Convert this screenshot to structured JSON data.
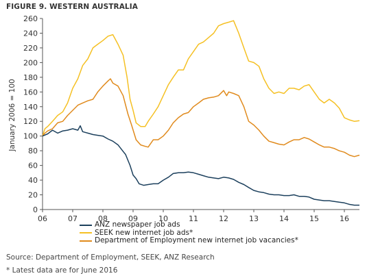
{
  "figure_title": "FIGURE 9. WESTERN AUSTRALIA",
  "source_note": "Source: Department of Employment, SEEK, ANZ Research",
  "footnote": "* Latest data are for June 2016",
  "chart_data": {
    "type": "line",
    "title": "",
    "xlabel": "",
    "ylabel": "January 2006 = 100",
    "xlim": [
      2006,
      2016.5
    ],
    "ylim": [
      0,
      260
    ],
    "yticks": [
      0,
      20,
      40,
      60,
      80,
      100,
      120,
      140,
      160,
      180,
      200,
      220,
      240,
      260
    ],
    "xtick_labels": [
      "06",
      "07",
      "08",
      "09",
      "10",
      "11",
      "12",
      "13",
      "14",
      "15",
      "16"
    ],
    "grid": false,
    "legend_position": "bottom",
    "series": [
      {
        "name": "ANZ newspaper job ads",
        "color": "#1b3f5c",
        "points": [
          [
            2006.0,
            100
          ],
          [
            2006.17,
            103
          ],
          [
            2006.33,
            108
          ],
          [
            2006.5,
            104
          ],
          [
            2006.67,
            107
          ],
          [
            2006.83,
            108
          ],
          [
            2007.0,
            110
          ],
          [
            2007.17,
            108
          ],
          [
            2007.25,
            114
          ],
          [
            2007.33,
            106
          ],
          [
            2007.5,
            104
          ],
          [
            2007.67,
            102
          ],
          [
            2007.83,
            101
          ],
          [
            2008.0,
            100
          ],
          [
            2008.17,
            96
          ],
          [
            2008.33,
            93
          ],
          [
            2008.5,
            88
          ],
          [
            2008.67,
            79
          ],
          [
            2008.75,
            75
          ],
          [
            2008.9,
            60
          ],
          [
            2009.0,
            47
          ],
          [
            2009.1,
            42
          ],
          [
            2009.2,
            35
          ],
          [
            2009.35,
            33
          ],
          [
            2009.5,
            34
          ],
          [
            2009.67,
            35
          ],
          [
            2009.83,
            35
          ],
          [
            2010.0,
            40
          ],
          [
            2010.17,
            44
          ],
          [
            2010.33,
            49
          ],
          [
            2010.5,
            50
          ],
          [
            2010.67,
            50
          ],
          [
            2010.83,
            51
          ],
          [
            2011.0,
            50
          ],
          [
            2011.17,
            48
          ],
          [
            2011.33,
            46
          ],
          [
            2011.5,
            44
          ],
          [
            2011.67,
            43
          ],
          [
            2011.83,
            42
          ],
          [
            2012.0,
            44
          ],
          [
            2012.17,
            43
          ],
          [
            2012.33,
            41
          ],
          [
            2012.5,
            37
          ],
          [
            2012.67,
            34
          ],
          [
            2012.83,
            30
          ],
          [
            2013.0,
            26
          ],
          [
            2013.17,
            24
          ],
          [
            2013.33,
            23
          ],
          [
            2013.5,
            21
          ],
          [
            2013.67,
            20
          ],
          [
            2013.83,
            20
          ],
          [
            2014.0,
            19
          ],
          [
            2014.17,
            19
          ],
          [
            2014.33,
            20
          ],
          [
            2014.5,
            18
          ],
          [
            2014.67,
            18
          ],
          [
            2014.83,
            17
          ],
          [
            2015.0,
            14
          ],
          [
            2015.17,
            13
          ],
          [
            2015.33,
            12
          ],
          [
            2015.5,
            12
          ],
          [
            2015.67,
            11
          ],
          [
            2015.83,
            10
          ],
          [
            2016.0,
            9
          ],
          [
            2016.17,
            7
          ],
          [
            2016.33,
            6
          ],
          [
            2016.5,
            6
          ]
        ]
      },
      {
        "name": "SEEK new internet job ads*",
        "color": "#f5c023",
        "points": [
          [
            2006.0,
            100
          ],
          [
            2006.08,
            110
          ],
          [
            2006.17,
            113
          ],
          [
            2006.33,
            120
          ],
          [
            2006.5,
            128
          ],
          [
            2006.67,
            133
          ],
          [
            2006.83,
            145
          ],
          [
            2007.0,
            165
          ],
          [
            2007.17,
            178
          ],
          [
            2007.33,
            196
          ],
          [
            2007.5,
            205
          ],
          [
            2007.67,
            220
          ],
          [
            2007.83,
            225
          ],
          [
            2008.0,
            230
          ],
          [
            2008.17,
            236
          ],
          [
            2008.33,
            238
          ],
          [
            2008.5,
            225
          ],
          [
            2008.67,
            210
          ],
          [
            2008.8,
            180
          ],
          [
            2008.9,
            150
          ],
          [
            2009.0,
            135
          ],
          [
            2009.1,
            118
          ],
          [
            2009.25,
            113
          ],
          [
            2009.4,
            113
          ],
          [
            2009.5,
            120
          ],
          [
            2009.67,
            130
          ],
          [
            2009.83,
            140
          ],
          [
            2010.0,
            155
          ],
          [
            2010.17,
            170
          ],
          [
            2010.33,
            180
          ],
          [
            2010.5,
            190
          ],
          [
            2010.67,
            190
          ],
          [
            2010.83,
            205
          ],
          [
            2011.0,
            215
          ],
          [
            2011.17,
            225
          ],
          [
            2011.33,
            228
          ],
          [
            2011.5,
            234
          ],
          [
            2011.67,
            240
          ],
          [
            2011.83,
            250
          ],
          [
            2012.0,
            253
          ],
          [
            2012.17,
            255
          ],
          [
            2012.33,
            257
          ],
          [
            2012.5,
            240
          ],
          [
            2012.67,
            220
          ],
          [
            2012.83,
            202
          ],
          [
            2013.0,
            200
          ],
          [
            2013.17,
            195
          ],
          [
            2013.33,
            178
          ],
          [
            2013.5,
            165
          ],
          [
            2013.67,
            158
          ],
          [
            2013.83,
            160
          ],
          [
            2014.0,
            158
          ],
          [
            2014.17,
            165
          ],
          [
            2014.33,
            165
          ],
          [
            2014.5,
            163
          ],
          [
            2014.67,
            168
          ],
          [
            2014.83,
            170
          ],
          [
            2015.0,
            160
          ],
          [
            2015.17,
            150
          ],
          [
            2015.33,
            145
          ],
          [
            2015.5,
            150
          ],
          [
            2015.67,
            145
          ],
          [
            2015.83,
            138
          ],
          [
            2016.0,
            125
          ],
          [
            2016.17,
            122
          ],
          [
            2016.33,
            120
          ],
          [
            2016.5,
            121
          ]
        ]
      },
      {
        "name": "Department of Employment new internet job vacancies*",
        "color": "#e08a1c",
        "points": [
          [
            2006.0,
            100
          ],
          [
            2006.08,
            104
          ],
          [
            2006.17,
            107
          ],
          [
            2006.33,
            110
          ],
          [
            2006.5,
            118
          ],
          [
            2006.67,
            120
          ],
          [
            2006.83,
            128
          ],
          [
            2007.0,
            135
          ],
          [
            2007.17,
            142
          ],
          [
            2007.33,
            145
          ],
          [
            2007.5,
            148
          ],
          [
            2007.67,
            150
          ],
          [
            2007.83,
            160
          ],
          [
            2008.0,
            168
          ],
          [
            2008.17,
            175
          ],
          [
            2008.25,
            178
          ],
          [
            2008.33,
            172
          ],
          [
            2008.5,
            168
          ],
          [
            2008.67,
            155
          ],
          [
            2008.83,
            130
          ],
          [
            2008.95,
            115
          ],
          [
            2009.1,
            95
          ],
          [
            2009.25,
            88
          ],
          [
            2009.4,
            86
          ],
          [
            2009.5,
            85
          ],
          [
            2009.67,
            95
          ],
          [
            2009.83,
            95
          ],
          [
            2010.0,
            100
          ],
          [
            2010.17,
            108
          ],
          [
            2010.33,
            118
          ],
          [
            2010.5,
            125
          ],
          [
            2010.67,
            130
          ],
          [
            2010.83,
            132
          ],
          [
            2011.0,
            140
          ],
          [
            2011.17,
            145
          ],
          [
            2011.33,
            150
          ],
          [
            2011.5,
            152
          ],
          [
            2011.67,
            153
          ],
          [
            2011.83,
            155
          ],
          [
            2012.0,
            162
          ],
          [
            2012.1,
            155
          ],
          [
            2012.17,
            160
          ],
          [
            2012.33,
            158
          ],
          [
            2012.5,
            155
          ],
          [
            2012.67,
            140
          ],
          [
            2012.83,
            120
          ],
          [
            2013.0,
            115
          ],
          [
            2013.17,
            108
          ],
          [
            2013.33,
            100
          ],
          [
            2013.5,
            93
          ],
          [
            2013.67,
            91
          ],
          [
            2013.83,
            89
          ],
          [
            2014.0,
            88
          ],
          [
            2014.17,
            92
          ],
          [
            2014.33,
            95
          ],
          [
            2014.5,
            95
          ],
          [
            2014.67,
            98
          ],
          [
            2014.83,
            96
          ],
          [
            2015.0,
            92
          ],
          [
            2015.17,
            88
          ],
          [
            2015.33,
            85
          ],
          [
            2015.5,
            85
          ],
          [
            2015.67,
            83
          ],
          [
            2015.83,
            80
          ],
          [
            2016.0,
            78
          ],
          [
            2016.17,
            74
          ],
          [
            2016.33,
            72
          ],
          [
            2016.5,
            74
          ]
        ]
      }
    ]
  }
}
